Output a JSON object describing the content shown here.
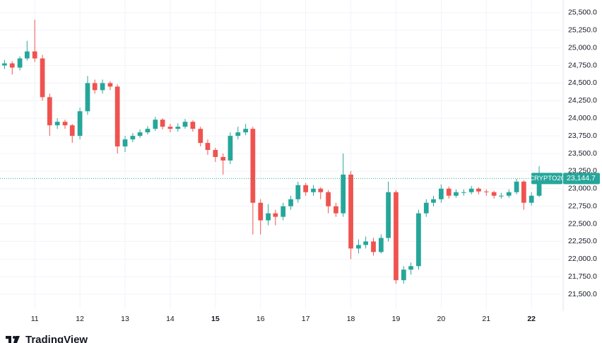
{
  "chart_data": {
    "type": "candlestick",
    "symbol": "CRYPTO20",
    "last_price_label": "23,144.7",
    "logo": "TradingView",
    "up_color": "#26a69a",
    "down_color": "#ef5350",
    "grid": true,
    "x": [
      10.33,
      10.5,
      10.67,
      10.83,
      11,
      11.17,
      11.33,
      11.5,
      11.67,
      11.83,
      12,
      12.17,
      12.33,
      12.5,
      12.67,
      12.83,
      13,
      13.17,
      13.33,
      13.5,
      13.67,
      13.83,
      14,
      14.17,
      14.33,
      14.5,
      14.67,
      14.83,
      15,
      15.17,
      15.33,
      15.5,
      15.67,
      15.83,
      16,
      16.17,
      16.33,
      16.5,
      16.67,
      16.83,
      17,
      17.17,
      17.33,
      17.5,
      17.67,
      17.83,
      18,
      18.17,
      18.33,
      18.5,
      18.67,
      18.83,
      19,
      19.17,
      19.33,
      19.5,
      19.67,
      19.83,
      20,
      20.17,
      20.33,
      20.5,
      20.67,
      20.83,
      21,
      21.17,
      21.33,
      21.5,
      21.67,
      21.83,
      22,
      22.17
    ],
    "open": [
      24750,
      24780,
      24720,
      24850,
      24950,
      24850,
      24300,
      23900,
      23950,
      23900,
      23750,
      24100,
      24500,
      24400,
      24500,
      24450,
      23600,
      23700,
      23750,
      23800,
      23850,
      23980,
      23880,
      23850,
      23880,
      23950,
      23850,
      23650,
      23550,
      23450,
      23400,
      23750,
      23800,
      23850,
      22800,
      22550,
      22650,
      22600,
      22750,
      22850,
      23050,
      22950,
      23000,
      22950,
      22750,
      22650,
      23200,
      22150,
      22200,
      22250,
      22100,
      22300,
      22950,
      21700,
      21850,
      21900,
      22650,
      22800,
      22850,
      23000,
      22900,
      22950,
      22950,
      23000,
      22960,
      22950,
      22900,
      22900,
      22950,
      23100,
      22800,
      22900
    ],
    "high": [
      24830,
      24810,
      24880,
      25100,
      25400,
      24900,
      24350,
      24000,
      23980,
      23920,
      24150,
      24600,
      24550,
      24550,
      24530,
      24480,
      23750,
      23790,
      23840,
      23890,
      24020,
      24000,
      23920,
      23930,
      23990,
      23970,
      23880,
      23700,
      23580,
      23500,
      23800,
      23880,
      23920,
      23880,
      22850,
      22780,
      22700,
      22800,
      22900,
      23100,
      23080,
      23050,
      23020,
      22980,
      22800,
      23500,
      23250,
      22280,
      22320,
      22300,
      22350,
      23100,
      22980,
      21900,
      21950,
      22700,
      22850,
      22900,
      23060,
      23030,
      22990,
      22990,
      23040,
      23020,
      22990,
      22970,
      22940,
      22990,
      23140,
      23120,
      22950,
      23320
    ],
    "low": [
      24700,
      24620,
      24680,
      24820,
      24800,
      24250,
      23750,
      23850,
      23850,
      23650,
      23700,
      24050,
      24350,
      24350,
      24400,
      23500,
      23520,
      23660,
      23720,
      23770,
      23820,
      23840,
      23800,
      23810,
      23850,
      23810,
      23600,
      23480,
      23380,
      23200,
      23350,
      23700,
      23760,
      22350,
      22350,
      22480,
      22480,
      22550,
      22700,
      22800,
      22900,
      22900,
      22850,
      22650,
      22600,
      22600,
      22000,
      22080,
      22150,
      22050,
      22080,
      22250,
      21650,
      21650,
      21780,
      21850,
      22600,
      22750,
      22800,
      22860,
      22870,
      22900,
      22920,
      22920,
      22900,
      22860,
      22860,
      22870,
      22920,
      22700,
      22760,
      22880
    ],
    "close": [
      24780,
      24720,
      24850,
      24950,
      24850,
      24300,
      23900,
      23950,
      23900,
      23750,
      24100,
      24500,
      24400,
      24500,
      24450,
      23600,
      23700,
      23750,
      23800,
      23850,
      23980,
      23880,
      23850,
      23880,
      23950,
      23850,
      23650,
      23550,
      23450,
      23400,
      23750,
      23800,
      23850,
      22800,
      22550,
      22650,
      22600,
      22750,
      22850,
      23050,
      22950,
      23000,
      22950,
      22750,
      22650,
      23200,
      22150,
      22200,
      22250,
      22100,
      22300,
      22950,
      21700,
      21850,
      21900,
      22650,
      22800,
      22850,
      23000,
      22900,
      22950,
      22950,
      23000,
      22960,
      22950,
      22900,
      22900,
      22950,
      23100,
      22800,
      22900,
      23144.7
    ],
    "xlim": [
      10.23,
      22.67
    ],
    "ylim": [
      21290,
      25680
    ],
    "xticks": [
      11,
      12,
      13,
      14,
      15,
      16,
      17,
      18,
      19,
      20,
      21,
      22
    ],
    "bold_xticks": [
      15,
      22
    ],
    "yticks": [
      {
        "value": 21500,
        "label": "21,500.0"
      },
      {
        "value": 21750,
        "label": "21,750.0"
      },
      {
        "value": 22000,
        "label": "22,000.0"
      },
      {
        "value": 22250,
        "label": "22,250.0"
      },
      {
        "value": 22500,
        "label": "22,500.0"
      },
      {
        "value": 22750,
        "label": "22,750.0"
      },
      {
        "value": 23000,
        "label": "23,000.0"
      },
      {
        "value": 23250,
        "label": "23,250.0"
      },
      {
        "value": 23500,
        "label": "23,500.0"
      },
      {
        "value": 23750,
        "label": "23,750.0"
      },
      {
        "value": 24000,
        "label": "24,000.0"
      },
      {
        "value": 24250,
        "label": "24,250.0"
      },
      {
        "value": 24500,
        "label": "24,500.0"
      },
      {
        "value": 24750,
        "label": "24,750.0"
      },
      {
        "value": 25000,
        "label": "25,000.0"
      },
      {
        "value": 25250,
        "label": "25,250.0"
      },
      {
        "value": 25500,
        "label": "25,500.0"
      }
    ]
  }
}
